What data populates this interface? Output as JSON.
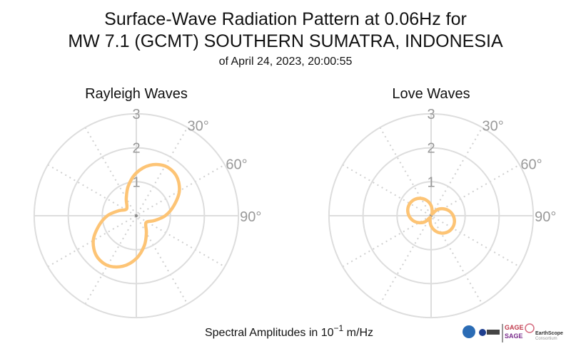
{
  "title_line1": "Surface-Wave Radiation Pattern at 0.06Hz for",
  "title_line2": "MW 7.1 (GCMT) SOUTHERN SUMATRA, INDONESIA",
  "subtitle": "of April 24, 2023, 20:00:55",
  "xlabel_prefix": "Spectral Amplitudes in 10",
  "xlabel_exp": "−1",
  "xlabel_suffix": " m/Hz",
  "logos": {
    "gage": "GAGE",
    "sage": "SAGE",
    "earthscope": "EarthScope",
    "consortium": "Consortium"
  },
  "colors": {
    "curve": "#fdc475",
    "grid": "#dddddd",
    "label": "#999999"
  },
  "chart_data": [
    {
      "type": "polar",
      "title": "Rayleigh Waves",
      "radial_ticks": [
        "1",
        "2",
        "3"
      ],
      "rlim": [
        0,
        3
      ],
      "angle_labels": [
        "30°",
        "60°",
        "90°"
      ],
      "azimuth_deg": [
        0,
        15,
        30,
        45,
        60,
        75,
        90,
        105,
        120,
        135,
        150,
        165,
        180,
        195,
        210,
        225,
        240,
        255,
        270,
        285,
        300,
        315,
        330,
        345
      ],
      "amplitude": [
        1.26,
        1.54,
        1.69,
        1.66,
        1.46,
        1.14,
        0.85,
        0.55,
        0.36,
        0.39,
        0.59,
        0.91,
        1.26,
        1.54,
        1.69,
        1.66,
        1.46,
        1.14,
        0.85,
        0.55,
        0.36,
        0.39,
        0.59,
        0.91
      ]
    },
    {
      "type": "polar",
      "title": "Love Waves",
      "radial_ticks": [
        "1",
        "2",
        "3"
      ],
      "rlim": [
        0,
        3
      ],
      "angle_labels": [
        "30°",
        "60°",
        "90°"
      ],
      "azimuth_deg": [
        0,
        15,
        30,
        45,
        60,
        75,
        90,
        105,
        120,
        135,
        150,
        165,
        180,
        195,
        210,
        225,
        240,
        255,
        270,
        285,
        300,
        315,
        330,
        345
      ],
      "amplitude": [
        0.3,
        0.13,
        0.06,
        0.25,
        0.41,
        0.55,
        0.65,
        0.71,
        0.72,
        0.68,
        0.59,
        0.46,
        0.3,
        0.13,
        0.06,
        0.25,
        0.41,
        0.55,
        0.65,
        0.71,
        0.72,
        0.68,
        0.59,
        0.46
      ]
    }
  ]
}
